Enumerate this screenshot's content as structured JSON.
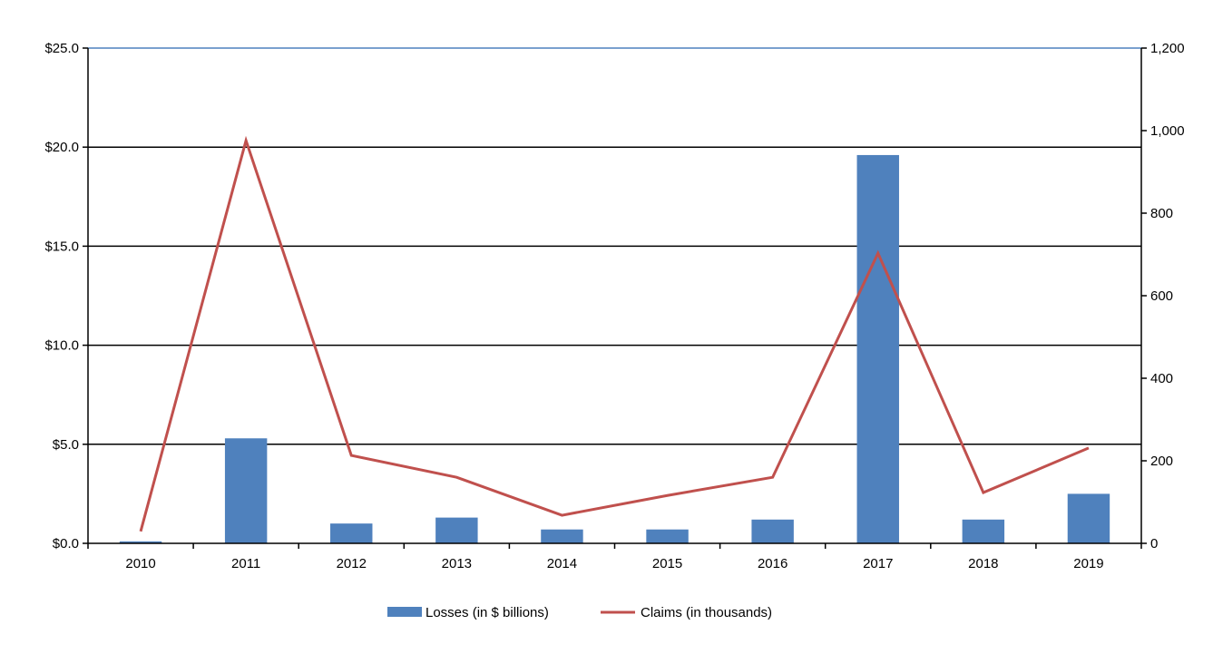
{
  "chart_data": {
    "type": "bar+line",
    "categories": [
      "2010",
      "2011",
      "2012",
      "2013",
      "2014",
      "2015",
      "2016",
      "2017",
      "2018",
      "2019"
    ],
    "series": [
      {
        "name": "Losses (in $ billions)",
        "type": "bar",
        "axis": "left",
        "color": "#4f81bd",
        "values": [
          0.1,
          5.3,
          1.0,
          1.3,
          0.7,
          0.7,
          1.2,
          19.6,
          1.2,
          2.5
        ]
      },
      {
        "name": "Claims (in thousands)",
        "type": "line",
        "axis": "right",
        "color": "#c0504d",
        "values": [
          29,
          976,
          213,
          160,
          68,
          116,
          160,
          703,
          123,
          231
        ]
      }
    ],
    "left_axis": {
      "ylim": [
        0,
        25
      ],
      "ticks": [
        "$0.0",
        "$5.0",
        "$10.0",
        "$15.0",
        "$20.0",
        "$25.0"
      ]
    },
    "right_axis": {
      "ylim": [
        0,
        1200
      ],
      "ticks": [
        "0",
        "200",
        "400",
        "600",
        "800",
        "1,000",
        "1,200"
      ]
    },
    "grid": true,
    "legend_position": "bottom"
  }
}
